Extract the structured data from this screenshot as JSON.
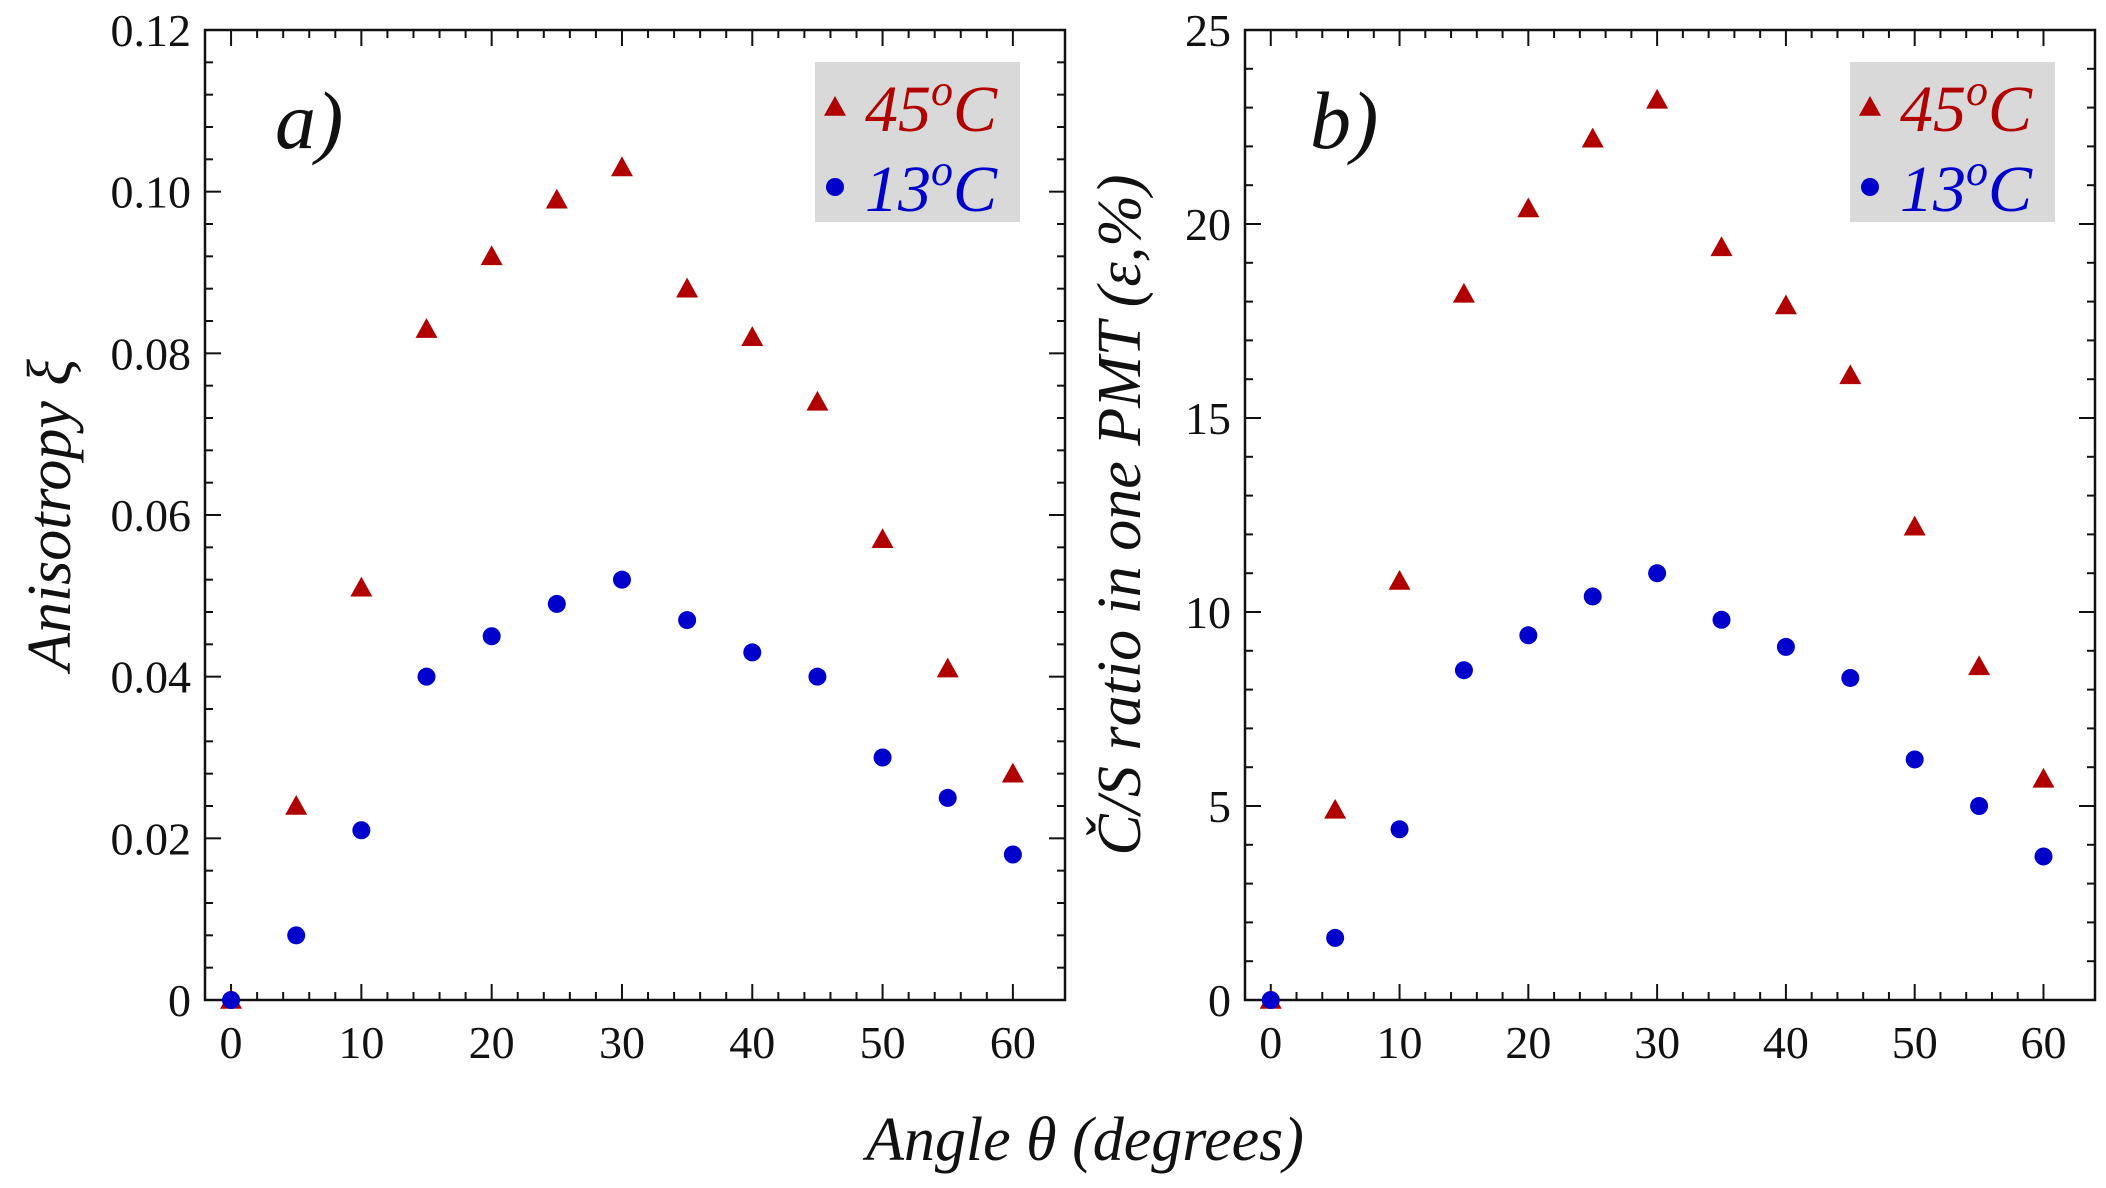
{
  "figure": {
    "xlabel": "Angle θ (degrees)"
  },
  "chart_data": [
    {
      "type": "scatter",
      "panel_label": "a)",
      "ylabel": "Anisotropy ξ",
      "xlim": [
        -2,
        64
      ],
      "ylim": [
        0,
        0.12
      ],
      "xticks": [
        0,
        10,
        20,
        30,
        40,
        50,
        60
      ],
      "xtick_labels": [
        "0",
        "10",
        "20",
        "30",
        "40",
        "50",
        "60"
      ],
      "yticks": [
        0,
        0.02,
        0.04,
        0.06,
        0.08,
        0.1,
        0.12
      ],
      "ytick_labels": [
        "0",
        "0.02",
        "0.04",
        "0.06",
        "0.08",
        "0.10",
        "0.12"
      ],
      "grid": false,
      "legend_position": "top-right",
      "x": [
        0,
        5,
        10,
        15,
        20,
        25,
        30,
        35,
        40,
        45,
        50,
        55,
        60
      ],
      "series": [
        {
          "name": "45",
          "name_sup": "o",
          "name_suffix": "C",
          "marker": "triangle",
          "color": "#b00000",
          "values": [
            0,
            0.024,
            0.051,
            0.083,
            0.092,
            0.099,
            0.103,
            0.088,
            0.082,
            0.074,
            0.057,
            0.041,
            0.028
          ]
        },
        {
          "name": "13",
          "name_sup": "o",
          "name_suffix": "C",
          "marker": "circle",
          "color": "#0000cc",
          "values": [
            0,
            0.008,
            0.021,
            0.04,
            0.045,
            0.049,
            0.052,
            0.047,
            0.043,
            0.04,
            0.03,
            0.025,
            0.018
          ]
        }
      ]
    },
    {
      "type": "scatter",
      "panel_label": "b)",
      "ylabel": "Č/S ratio in one PMT (ε,%)",
      "xlim": [
        -2,
        64
      ],
      "ylim": [
        0,
        25
      ],
      "xticks": [
        0,
        10,
        20,
        30,
        40,
        50,
        60
      ],
      "xtick_labels": [
        "0",
        "10",
        "20",
        "30",
        "40",
        "50",
        "60"
      ],
      "yticks": [
        0,
        5,
        10,
        15,
        20,
        25
      ],
      "ytick_labels": [
        "0",
        "5",
        "10",
        "15",
        "20",
        "25"
      ],
      "grid": false,
      "legend_position": "top-right",
      "x": [
        0,
        5,
        10,
        15,
        20,
        25,
        30,
        35,
        40,
        45,
        50,
        55,
        60
      ],
      "series": [
        {
          "name": "45",
          "name_sup": "o",
          "name_suffix": "C",
          "marker": "triangle",
          "color": "#b00000",
          "values": [
            0,
            4.9,
            10.8,
            18.2,
            20.4,
            22.2,
            23.2,
            19.4,
            17.9,
            16.1,
            12.2,
            8.6,
            5.7
          ]
        },
        {
          "name": "13",
          "name_sup": "o",
          "name_suffix": "C",
          "marker": "circle",
          "color": "#0000cc",
          "values": [
            0,
            1.6,
            4.4,
            8.5,
            9.4,
            10.4,
            11.0,
            9.8,
            9.1,
            8.3,
            6.2,
            5.0,
            3.7
          ]
        }
      ]
    }
  ],
  "style": {
    "legend_background": "#d9d9d9",
    "axis_color": "#111111"
  }
}
